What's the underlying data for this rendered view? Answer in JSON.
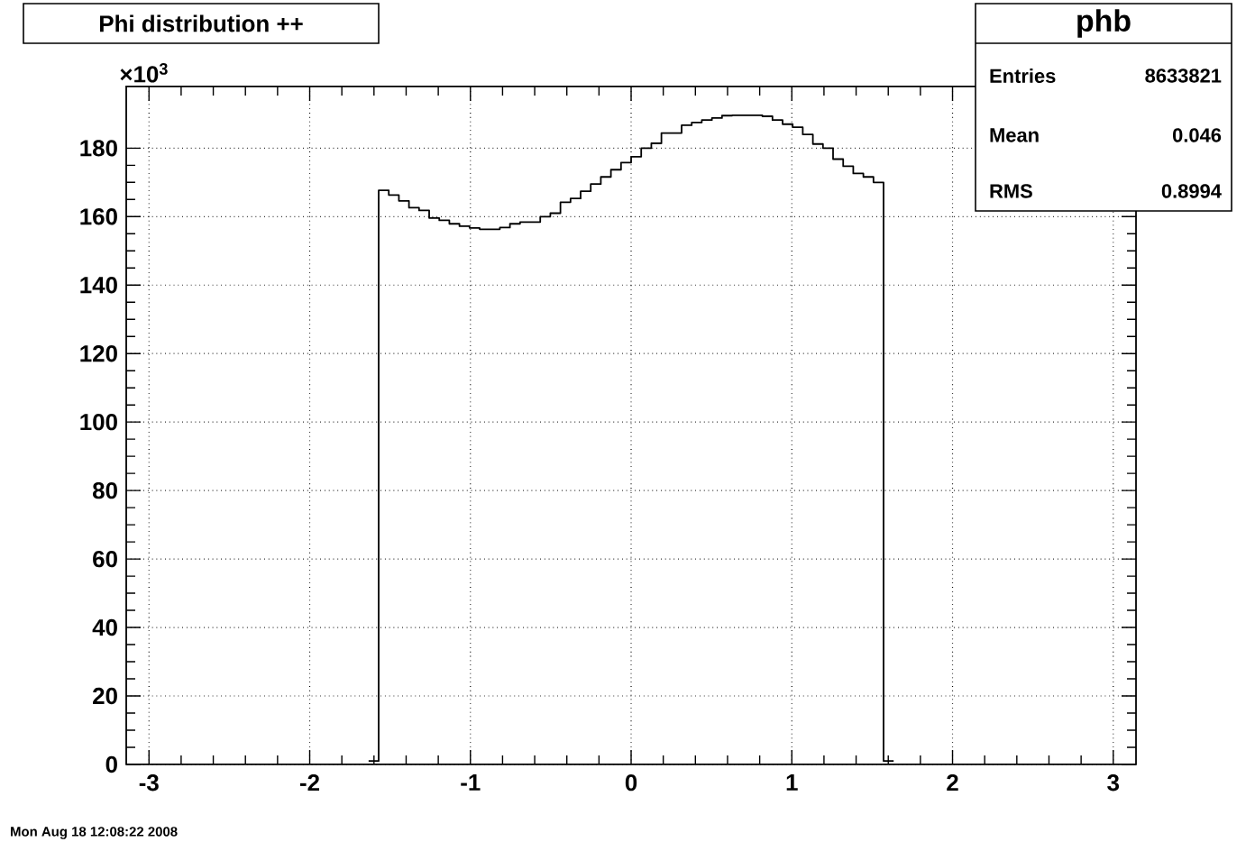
{
  "chart_data": {
    "type": "histogram",
    "title": "Phi distribution ++",
    "bins": [
      -1.6336,
      -1.5708,
      -1.508,
      -1.4451,
      -1.3823,
      -1.3195,
      -1.2566,
      -1.1938,
      -1.131,
      -1.0681,
      -1.0053,
      -0.9425,
      -0.8796,
      -0.8168,
      -0.754,
      -0.6912,
      -0.6283,
      -0.5655,
      -0.5027,
      -0.4398,
      -0.377,
      -0.3142,
      -0.2513,
      -0.1885,
      -0.1257,
      -0.0628,
      0,
      0.0628,
      0.1257,
      0.1885,
      0.2513,
      0.3142,
      0.377,
      0.4398,
      0.5027,
      0.5655,
      0.6283,
      0.6912,
      0.754,
      0.8168,
      0.8796,
      0.9425,
      1.0053,
      1.0681,
      1.131,
      1.1938,
      1.2566,
      1.3195,
      1.3823,
      1.4451,
      1.508,
      1.5708,
      1.6336
    ],
    "values": [
      1,
      167.7,
      166.3,
      164.6,
      162.6,
      161.8,
      159.6,
      158.9,
      157.9,
      157.2,
      156.7,
      156.3,
      156.3,
      156.8,
      157.9,
      158.4,
      158.4,
      160,
      161,
      164.2,
      165.3,
      167.4,
      169.5,
      171.6,
      173.7,
      175.8,
      177.5,
      180,
      181.4,
      184.4,
      184.4,
      186.7,
      187.5,
      188.2,
      188.8,
      189.5,
      189.6,
      189.6,
      189.6,
      189.3,
      188.2,
      187,
      186.1,
      184,
      181.2,
      180,
      176.8,
      174.7,
      172.6,
      171.6,
      170,
      1
    ],
    "color": "#000000",
    "xlim": [
      -3.1416,
      3.1416
    ],
    "xticks": [
      -3,
      -2,
      -1,
      0,
      1,
      2,
      3
    ],
    "ylim": [
      0,
      198
    ],
    "yticks": [
      0,
      20,
      40,
      60,
      80,
      100,
      120,
      140,
      160,
      180
    ],
    "grid": true,
    "annotations": [
      "×10$^{3}$",
      "phb",
      "Entries",
      "8633821",
      "Mean",
      "0.046",
      "RMS",
      "0.8994",
      "Mon Aug 18 12:08:22 2008"
    ]
  }
}
